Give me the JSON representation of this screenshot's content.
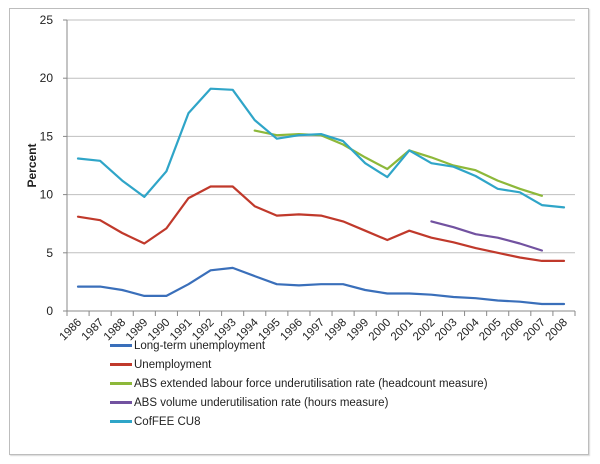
{
  "chart_data": {
    "type": "line",
    "title": "",
    "xlabel": "",
    "ylabel": "Percent",
    "ylim": [
      0,
      25
    ],
    "yticks": [
      0,
      5,
      10,
      15,
      20,
      25
    ],
    "grid": true,
    "legend_position": "bottom",
    "categories": [
      "1986",
      "1987",
      "1988",
      "1989",
      "1990",
      "1991",
      "1992",
      "1993",
      "1994",
      "1995",
      "1996",
      "1997",
      "1998",
      "1999",
      "2000",
      "2001",
      "2002",
      "2003",
      "2004",
      "2005",
      "2006",
      "2007",
      "2008"
    ],
    "series": [
      {
        "name": "Long-term unemployment",
        "color": "#3a6fba",
        "values": [
          2.1,
          2.1,
          1.8,
          1.3,
          1.3,
          2.3,
          3.5,
          3.7,
          3.0,
          2.3,
          2.2,
          2.3,
          2.3,
          1.8,
          1.5,
          1.5,
          1.4,
          1.2,
          1.1,
          0.9,
          0.8,
          0.6,
          0.6
        ]
      },
      {
        "name": "Unemployment",
        "color": "#c0392b",
        "values": [
          8.1,
          7.8,
          6.7,
          5.8,
          7.1,
          9.7,
          10.7,
          10.7,
          9.0,
          8.2,
          8.3,
          8.2,
          7.7,
          6.9,
          6.1,
          6.9,
          6.3,
          5.9,
          5.4,
          5.0,
          4.6,
          4.3,
          4.3
        ]
      },
      {
        "name": "ABS extended labour force underutilisation rate (headcount measure)",
        "color": "#8db83a",
        "values": [
          null,
          null,
          null,
          null,
          null,
          null,
          null,
          null,
          15.5,
          15.1,
          15.2,
          15.1,
          14.3,
          13.2,
          12.2,
          13.8,
          13.2,
          12.5,
          12.1,
          11.2,
          10.5,
          9.9,
          null
        ]
      },
      {
        "name": "ABS volume underutilisation rate (hours measure)",
        "color": "#7252a0",
        "values": [
          null,
          null,
          null,
          null,
          null,
          null,
          null,
          null,
          null,
          null,
          null,
          null,
          null,
          null,
          null,
          null,
          7.7,
          7.2,
          6.6,
          6.3,
          5.8,
          5.2,
          null
        ]
      },
      {
        "name": "CofFEE CU8",
        "color": "#2fa5c8",
        "values": [
          13.1,
          12.9,
          11.2,
          9.8,
          12.0,
          17.0,
          19.1,
          19.0,
          16.4,
          14.8,
          15.1,
          15.2,
          14.6,
          12.7,
          11.5,
          13.8,
          12.7,
          12.4,
          11.6,
          10.5,
          10.2,
          9.1,
          8.9
        ]
      }
    ]
  }
}
